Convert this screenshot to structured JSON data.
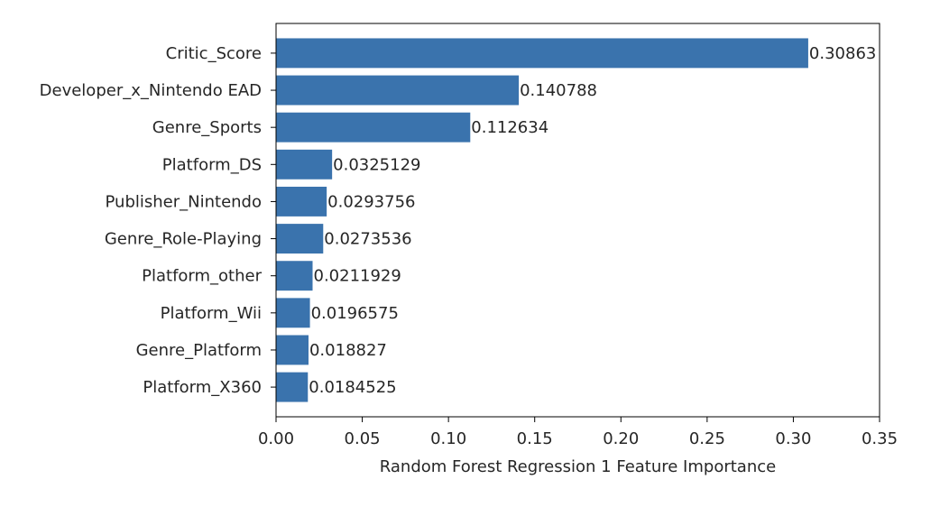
{
  "chart_data": {
    "type": "bar",
    "orientation": "horizontal",
    "categories": [
      "Critic_Score",
      "Developer_x_Nintendo EAD",
      "Genre_Sports",
      "Platform_DS",
      "Publisher_Nintendo",
      "Genre_Role-Playing",
      "Platform_other",
      "Platform_Wii",
      "Genre_Platform",
      "Platform_X360"
    ],
    "values": [
      0.30863,
      0.140788,
      0.112634,
      0.0325129,
      0.0293756,
      0.0273536,
      0.0211929,
      0.0196575,
      0.018827,
      0.0184525
    ],
    "value_labels": [
      "0.30863",
      "0.140788",
      "0.112634",
      "0.0325129",
      "0.0293756",
      "0.0273536",
      "0.0211929",
      "0.0196575",
      "0.018827",
      "0.0184525"
    ],
    "title": "",
    "xlabel": "Random Forest Regression 1 Feature Importance",
    "ylabel": "",
    "xlim": [
      0,
      0.35
    ],
    "xticks": [
      0.0,
      0.05,
      0.1,
      0.15,
      0.2,
      0.25,
      0.3,
      0.35
    ],
    "xtick_labels": [
      "0.00",
      "0.05",
      "0.10",
      "0.15",
      "0.20",
      "0.25",
      "0.30",
      "0.35"
    ],
    "grid": false,
    "bar_color": "#3a73ad"
  }
}
